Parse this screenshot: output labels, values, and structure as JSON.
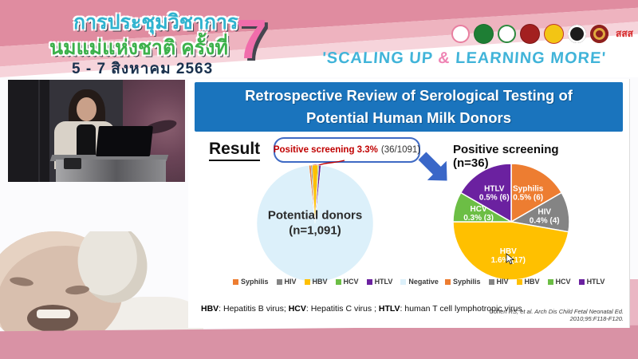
{
  "banner": {
    "title_line1": "การประชุมวิชาการ",
    "title_line2": "นมแม่แห่งชาติ ครั้งที่",
    "title_line3": "5 - 7 สิงหาคม 2563",
    "edition_number": "7",
    "tagline_pre": "'SCALING UP ",
    "tagline_amp": "&",
    "tagline_post": " LEARNING MORE'",
    "sss_text": "สสส",
    "logos": [
      "mother-child-logo",
      "ministry-health-logo",
      "green-seal-logo",
      "red-crest-logo",
      "royal-crest-logo",
      "black-emblem-logo",
      "maroon-emblem-logo",
      "sss-logo"
    ]
  },
  "slide": {
    "title_line1": "Retrospective Review of Serological Testing of",
    "title_line2": "Potential Human Milk Donors",
    "result_label": "Result",
    "callout": {
      "highlight": "Positive screening 3.3%",
      "detail": "(36/1091)"
    },
    "footnote": [
      {
        "term": "HBV",
        "def": ": Hepatitis B virus; "
      },
      {
        "term": "HCV",
        "def": ": Hepatitis C virus ; "
      },
      {
        "term": "HTLV",
        "def": ": human T cell lymphotropic virus"
      }
    ],
    "citation": "Cohen RS, et al. Arch Dis Child Fetal Neonatal Ed. 2010;95:F118-F120."
  },
  "chart_data": [
    {
      "type": "pie",
      "title": "Potential donors (n=1,091)",
      "center_label_line1": "Potential donors",
      "center_label_line2": "(n=1,091)",
      "total": 1091,
      "categories": [
        "Syphilis",
        "HIV",
        "HBV",
        "HCV",
        "HTLV",
        "Negative"
      ],
      "values": [
        6,
        4,
        17,
        3,
        6,
        1055
      ],
      "colors": [
        "#ED7D31",
        "#848484",
        "#FFC000",
        "#6CBE45",
        "#6B21A0",
        "#DCF0FA"
      ],
      "start_angle": -6,
      "stroke_width": 0.5,
      "legend": [
        {
          "label": "Syphilis",
          "color": "#ED7D31"
        },
        {
          "label": "HIV",
          "color": "#848484"
        },
        {
          "label": "HBV",
          "color": "#FFC000"
        },
        {
          "label": "HCV",
          "color": "#6CBE45"
        },
        {
          "label": "HTLV",
          "color": "#6B21A0"
        },
        {
          "label": "Negative",
          "color": "#DCF0FA"
        }
      ]
    },
    {
      "type": "pie",
      "title": "Positive screening (n=36)",
      "total": 36,
      "categories": [
        "Syphilis",
        "HIV",
        "HBV",
        "HCV",
        "HTLV"
      ],
      "values": [
        6,
        4,
        17,
        3,
        6
      ],
      "slice_labels": [
        [
          "Syphilis",
          "0.5% (6)"
        ],
        [
          "HIV",
          "0.4% (4)"
        ],
        [
          "HBV",
          "1.6% (17)"
        ],
        [
          "HCV",
          "0.3% (3)"
        ],
        [
          "HTLV",
          "0.5% (6)"
        ]
      ],
      "colors": [
        "#ED7D31",
        "#848484",
        "#FFC000",
        "#6CBE45",
        "#6B21A0"
      ],
      "start_angle": 0,
      "stroke_width": 1.5,
      "label_radius": 0.58,
      "legend": [
        {
          "label": "Syphilis",
          "color": "#ED7D31"
        },
        {
          "label": "HIV",
          "color": "#848484"
        },
        {
          "label": "HBV",
          "color": "#FFC000"
        },
        {
          "label": "HCV",
          "color": "#6CBE45"
        },
        {
          "label": "HTLV",
          "color": "#6B21A0"
        }
      ]
    }
  ]
}
